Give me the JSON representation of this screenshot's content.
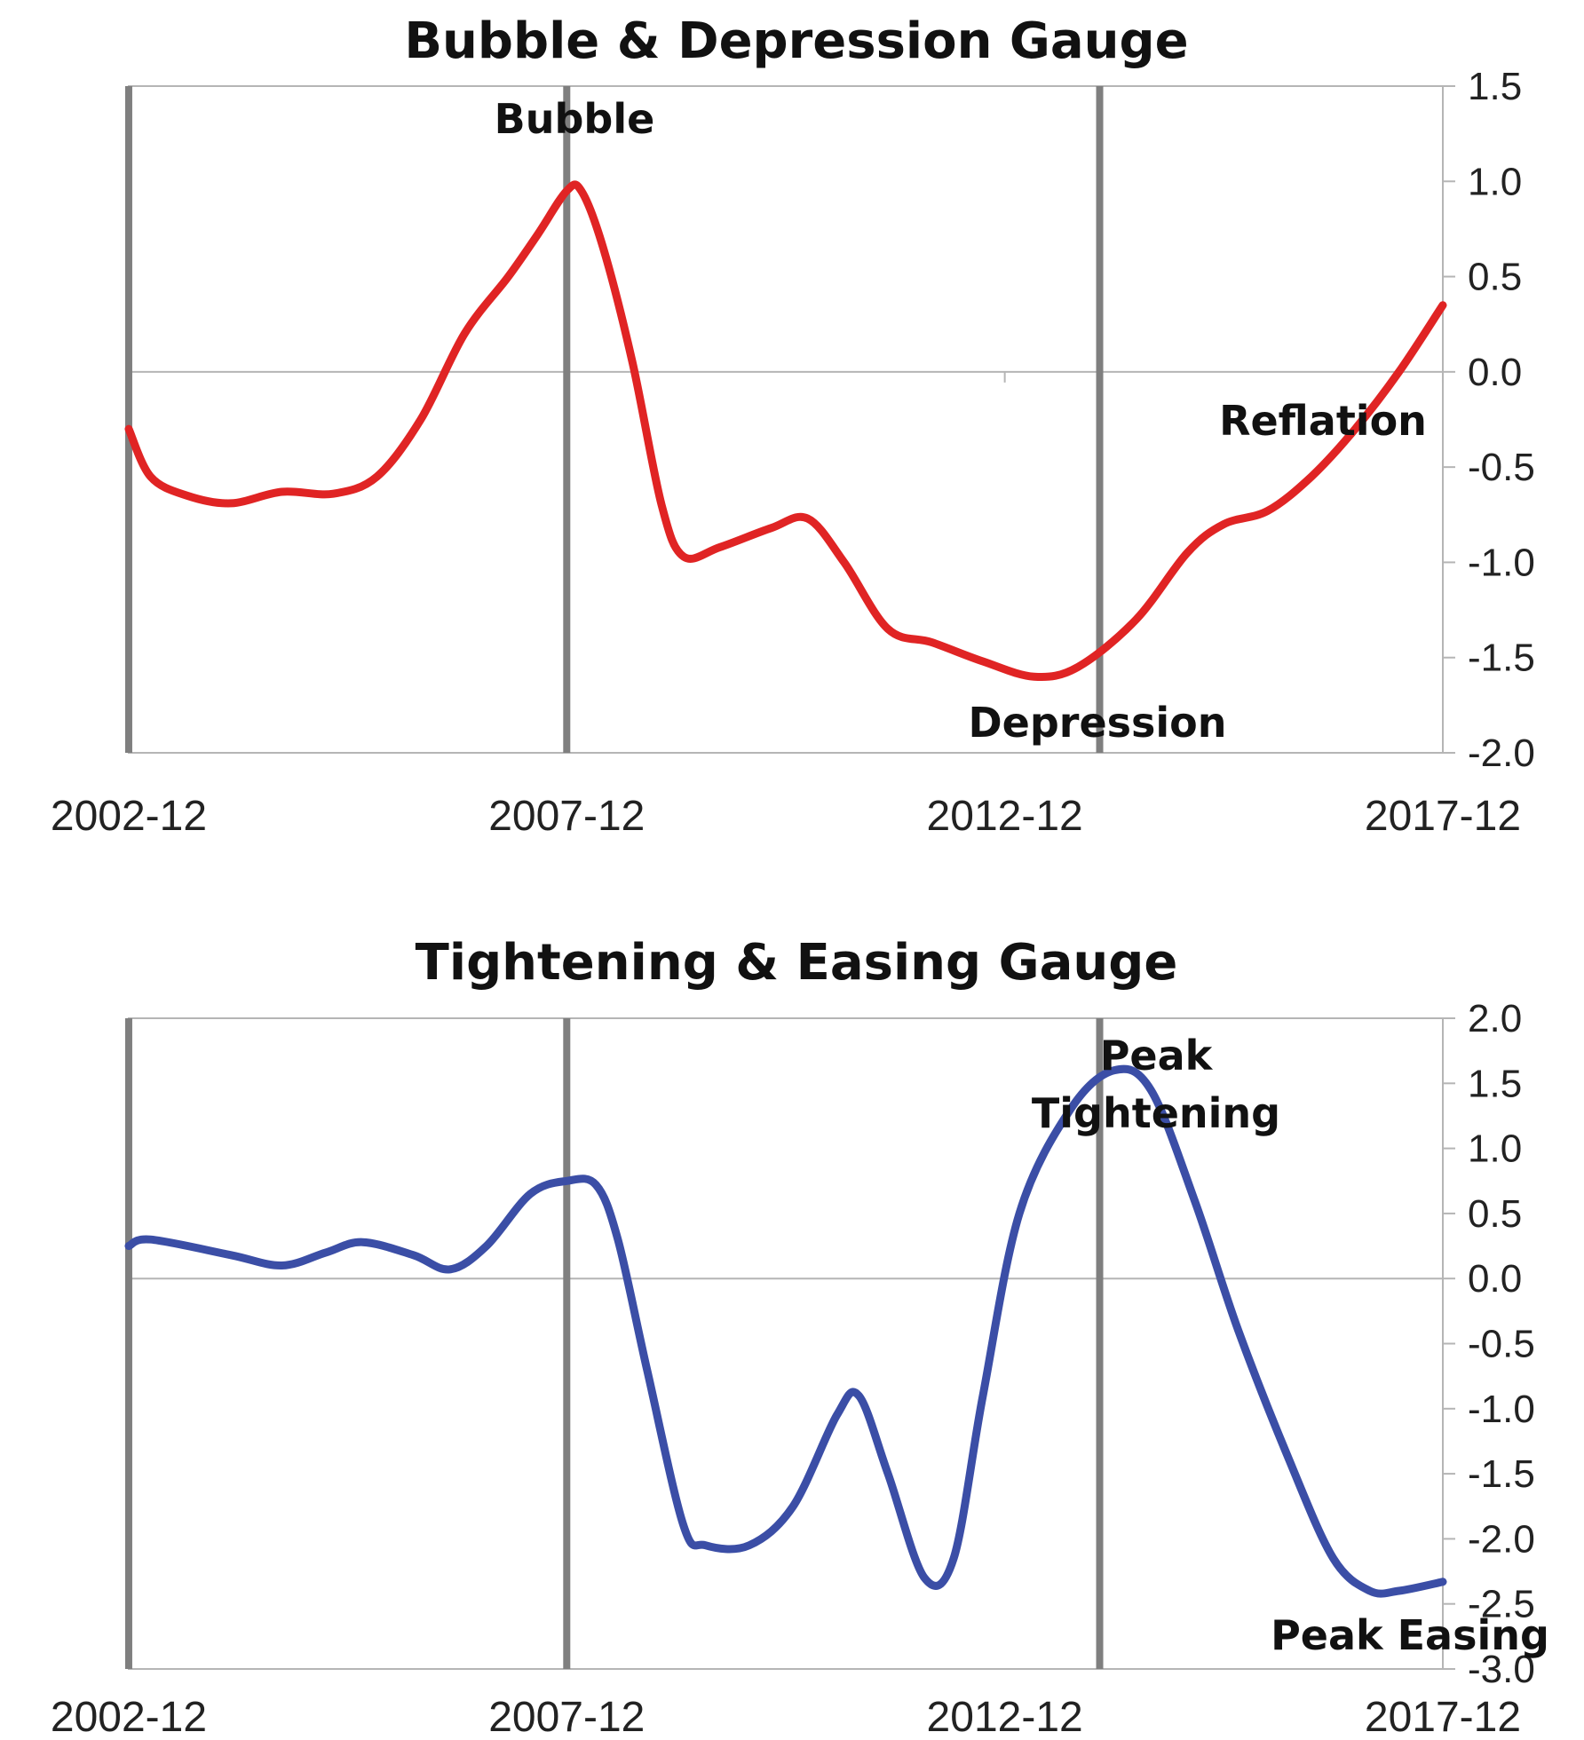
{
  "chart_data": [
    {
      "type": "line",
      "title": "Bubble & Depression Gauge",
      "xlabel": "",
      "ylabel": "",
      "x_ticks": [
        "2002-12",
        "2007-12",
        "2012-12",
        "2017-12"
      ],
      "xlim": [
        2002.917,
        2017.917
      ],
      "ylim": [
        -2.0,
        1.5
      ],
      "y_ticks": [
        "1.5",
        "1.0",
        "0.5",
        "0.0",
        "-0.5",
        "-1.0",
        "-1.5",
        "-2.0"
      ],
      "y_tick_values": [
        1.5,
        1.0,
        0.5,
        0.0,
        -0.5,
        -1.0,
        -1.5,
        -2.0
      ],
      "y_axis_side": "right",
      "grid": false,
      "zero_line": true,
      "line_color": "#e02424",
      "markers": [
        "2002-12",
        "2007-12",
        "2014-01"
      ],
      "series": [
        {
          "values": [
            {
              "x": "2002-12",
              "y": -0.3
            },
            {
              "x": "2003-03",
              "y": -0.55
            },
            {
              "x": "2003-08",
              "y": -0.65
            },
            {
              "x": "2004-02",
              "y": -0.69
            },
            {
              "x": "2004-09",
              "y": -0.63
            },
            {
              "x": "2005-04",
              "y": -0.64
            },
            {
              "x": "2005-10",
              "y": -0.55
            },
            {
              "x": "2006-04",
              "y": -0.25
            },
            {
              "x": "2006-10",
              "y": 0.2
            },
            {
              "x": "2007-04",
              "y": 0.5
            },
            {
              "x": "2007-08",
              "y": 0.72
            },
            {
              "x": "2007-12",
              "y": 0.95
            },
            {
              "x": "2008-02",
              "y": 0.95
            },
            {
              "x": "2008-05",
              "y": 0.65
            },
            {
              "x": "2008-09",
              "y": 0.05
            },
            {
              "x": "2009-01",
              "y": -0.7
            },
            {
              "x": "2009-04",
              "y": -0.97
            },
            {
              "x": "2009-09",
              "y": -0.92
            },
            {
              "x": "2010-04",
              "y": -0.82
            },
            {
              "x": "2010-09",
              "y": -0.77
            },
            {
              "x": "2011-02",
              "y": -1.0
            },
            {
              "x": "2011-08",
              "y": -1.35
            },
            {
              "x": "2012-02",
              "y": -1.42
            },
            {
              "x": "2012-09",
              "y": -1.52
            },
            {
              "x": "2013-04",
              "y": -1.6
            },
            {
              "x": "2013-10",
              "y": -1.55
            },
            {
              "x": "2014-06",
              "y": -1.3
            },
            {
              "x": "2015-01",
              "y": -0.95
            },
            {
              "x": "2015-06",
              "y": -0.8
            },
            {
              "x": "2015-12",
              "y": -0.73
            },
            {
              "x": "2016-06",
              "y": -0.55
            },
            {
              "x": "2016-12",
              "y": -0.3
            },
            {
              "x": "2017-06",
              "y": 0.0
            },
            {
              "x": "2017-12",
              "y": 0.35
            }
          ]
        }
      ],
      "annotations": [
        {
          "text": "Bubble"
        },
        {
          "text": "Reflation"
        },
        {
          "text": "Depression"
        }
      ]
    },
    {
      "type": "line",
      "title": "Tightening & Easing Gauge",
      "xlabel": "",
      "ylabel": "",
      "x_ticks": [
        "2002-12",
        "2007-12",
        "2012-12",
        "2017-12"
      ],
      "xlim": [
        2002.917,
        2017.917
      ],
      "ylim": [
        -3.0,
        2.0
      ],
      "y_ticks": [
        "2.0",
        "1.5",
        "1.0",
        "0.5",
        "0.0",
        "-0.5",
        "-1.0",
        "-1.5",
        "-2.0",
        "-2.5",
        "-3.0"
      ],
      "y_tick_values": [
        2.0,
        1.5,
        1.0,
        0.5,
        0.0,
        -0.5,
        -1.0,
        -1.5,
        -2.0,
        -2.5,
        -3.0
      ],
      "y_axis_side": "right",
      "grid": false,
      "zero_line": true,
      "line_color": "#3b4ea6",
      "markers": [
        "2002-12",
        "2007-12",
        "2014-01"
      ],
      "series": [
        {
          "values": [
            {
              "x": "2002-12",
              "y": 0.25
            },
            {
              "x": "2003-03",
              "y": 0.3
            },
            {
              "x": "2004-02",
              "y": 0.18
            },
            {
              "x": "2004-09",
              "y": 0.1
            },
            {
              "x": "2005-03",
              "y": 0.2
            },
            {
              "x": "2005-08",
              "y": 0.28
            },
            {
              "x": "2006-03",
              "y": 0.18
            },
            {
              "x": "2006-08",
              "y": 0.07
            },
            {
              "x": "2007-01",
              "y": 0.25
            },
            {
              "x": "2007-07",
              "y": 0.65
            },
            {
              "x": "2007-12",
              "y": 0.75
            },
            {
              "x": "2008-04",
              "y": 0.72
            },
            {
              "x": "2008-07",
              "y": 0.3
            },
            {
              "x": "2008-11",
              "y": -0.7
            },
            {
              "x": "2009-04",
              "y": -1.9
            },
            {
              "x": "2009-07",
              "y": -2.05
            },
            {
              "x": "2010-01",
              "y": -2.05
            },
            {
              "x": "2010-07",
              "y": -1.75
            },
            {
              "x": "2011-01",
              "y": -1.05
            },
            {
              "x": "2011-04",
              "y": -0.9
            },
            {
              "x": "2011-08",
              "y": -1.5
            },
            {
              "x": "2012-01",
              "y": -2.3
            },
            {
              "x": "2012-05",
              "y": -2.15
            },
            {
              "x": "2012-09",
              "y": -0.9
            },
            {
              "x": "2013-02",
              "y": 0.5
            },
            {
              "x": "2013-09",
              "y": 1.3
            },
            {
              "x": "2014-03",
              "y": 1.6
            },
            {
              "x": "2014-08",
              "y": 1.45
            },
            {
              "x": "2015-02",
              "y": 0.6
            },
            {
              "x": "2015-08",
              "y": -0.4
            },
            {
              "x": "2016-03",
              "y": -1.4
            },
            {
              "x": "2016-09",
              "y": -2.15
            },
            {
              "x": "2017-02",
              "y": -2.4
            },
            {
              "x": "2017-06",
              "y": -2.4
            },
            {
              "x": "2017-12",
              "y": -2.33
            }
          ]
        }
      ],
      "annotations": [
        {
          "text": "Peak"
        },
        {
          "text": "Tightening"
        },
        {
          "text": "Peak Easing"
        }
      ]
    }
  ]
}
